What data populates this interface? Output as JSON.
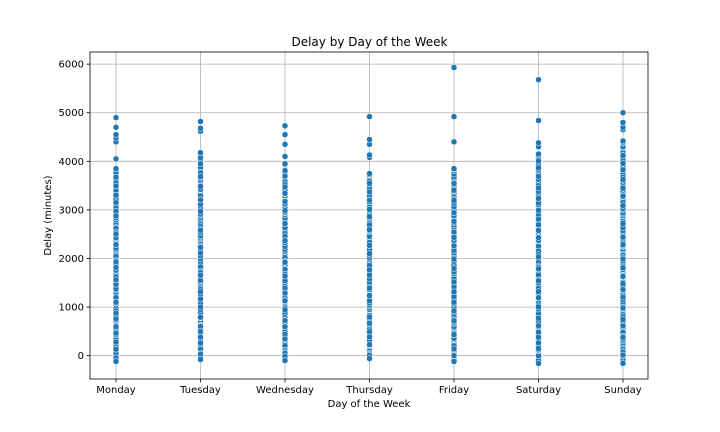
{
  "chart_data": {
    "type": "scatter",
    "title": "Delay by Day of the Week",
    "xlabel": "Day of the Week",
    "ylabel": "Delay (minutes)",
    "categories": [
      "Monday",
      "Tuesday",
      "Wednesday",
      "Thursday",
      "Friday",
      "Saturday",
      "Sunday"
    ],
    "ylim": [
      -480,
      6250
    ],
    "yticks": [
      0,
      1000,
      2000,
      3000,
      4000,
      5000,
      6000
    ],
    "grid": true,
    "point_color": "#1f77b4",
    "series": [
      {
        "category": "Monday",
        "dense_range": [
          -120,
          3850
        ],
        "outliers": [
          4050,
          4400,
          4480,
          4550,
          4700,
          4900
        ]
      },
      {
        "category": "Tuesday",
        "dense_range": [
          -80,
          4180
        ],
        "outliers": [
          4620,
          4680,
          4820
        ]
      },
      {
        "category": "Wednesday",
        "dense_range": [
          -100,
          3950
        ],
        "outliers": [
          4100,
          4350,
          4550,
          4730
        ]
      },
      {
        "category": "Thursday",
        "dense_range": [
          -60,
          3750
        ],
        "outliers": [
          4080,
          4130,
          4350,
          4450,
          4920
        ]
      },
      {
        "category": "Friday",
        "dense_range": [
          -120,
          3850
        ],
        "outliers": [
          4400,
          4920,
          5930
        ]
      },
      {
        "category": "Saturday",
        "dense_range": [
          -160,
          4150
        ],
        "outliers": [
          4300,
          4380,
          4840,
          5680
        ]
      },
      {
        "category": "Sunday",
        "dense_range": [
          -160,
          4420
        ],
        "outliers": [
          4650,
          4700,
          4800,
          5000
        ]
      }
    ]
  }
}
